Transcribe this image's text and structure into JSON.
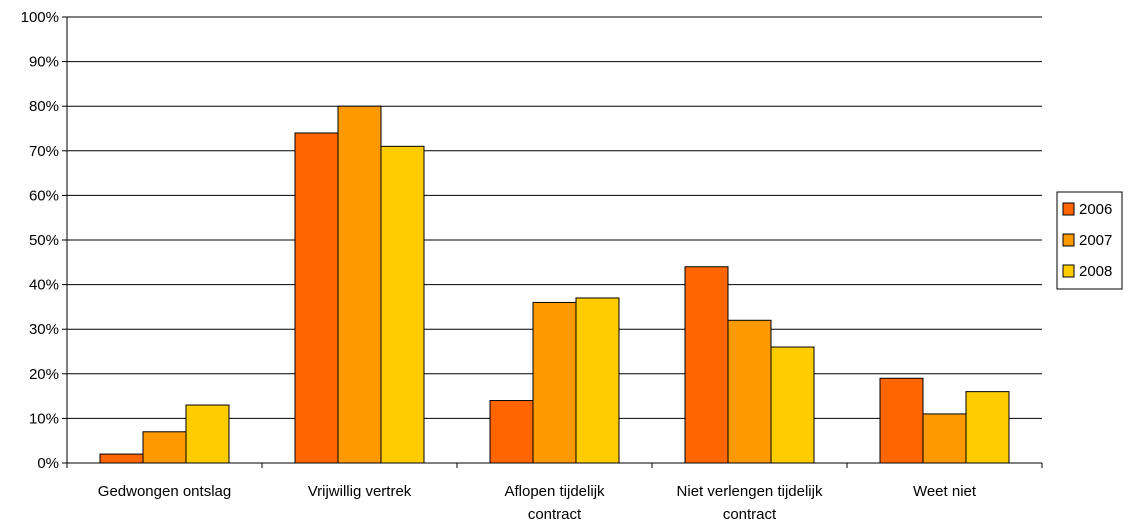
{
  "chart_data": {
    "type": "bar",
    "categories": [
      [
        "Gedwongen ontslag"
      ],
      [
        "Vrijwillig vertrek"
      ],
      [
        "Aflopen tijdelijk",
        "contract"
      ],
      [
        "Niet verlengen tijdelijk",
        "contract"
      ],
      [
        "Weet niet"
      ]
    ],
    "series": [
      {
        "name": "2006",
        "color": "#ff6600",
        "values": [
          2,
          74,
          14,
          44,
          19
        ]
      },
      {
        "name": "2007",
        "color": "#ff9900",
        "values": [
          7,
          80,
          36,
          32,
          11
        ]
      },
      {
        "name": "2008",
        "color": "#ffcc00",
        "values": [
          13,
          71,
          37,
          26,
          16
        ]
      }
    ],
    "ylim": [
      0,
      100
    ],
    "yticks": [
      "0%",
      "10%",
      "20%",
      "30%",
      "40%",
      "50%",
      "60%",
      "70%",
      "80%",
      "90%",
      "100%"
    ],
    "grid": true,
    "legend": "right"
  }
}
